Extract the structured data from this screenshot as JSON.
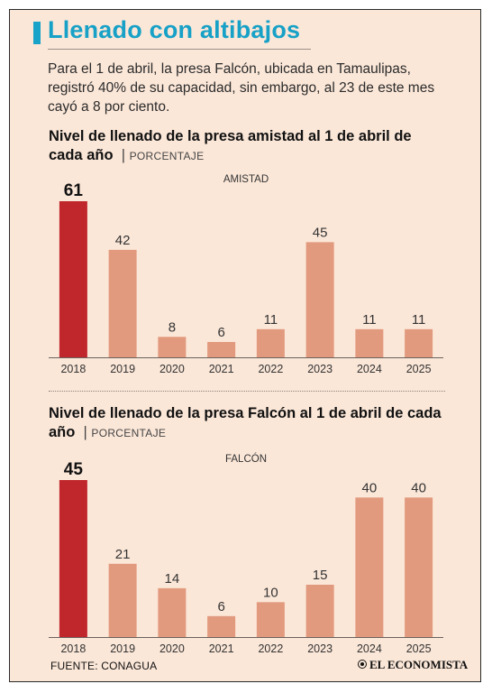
{
  "headline": "Llenado con altibajos",
  "intro": "Para el 1 de abril, la presa Falcón, ubicada en Tamaulipas, registró 40% de su capacidad, sin embargo, al 23 de este mes cayó a 8 por ciento.",
  "footer": {
    "source": "FUENTE: CONAGUA",
    "logo": "EL ECONOMISTA"
  },
  "colors": {
    "accent": "#1aa3c9",
    "highlight_bar": "#c0272d",
    "bar": "#e29a7e",
    "background": "#fbe7d8"
  },
  "chart_data": [
    {
      "type": "bar",
      "title": "Nivel de llenado de la presa amistad al 1 de abril de cada año",
      "unit": "PORCENTAJE",
      "label": "AMISTAD",
      "categories": [
        "2018",
        "2019",
        "2020",
        "2021",
        "2022",
        "2023",
        "2024",
        "2025"
      ],
      "values": [
        61,
        42,
        8,
        6,
        11,
        45,
        11,
        11
      ],
      "highlight_index": 0,
      "ylim": [
        0,
        61
      ],
      "grid": false
    },
    {
      "type": "bar",
      "title": "Nivel de llenado de la presa Falcón al 1 de abril de cada año",
      "unit": "PORCENTAJE",
      "label": "FALCÓN",
      "categories": [
        "2018",
        "2019",
        "2020",
        "2021",
        "2022",
        "2023",
        "2024",
        "2025"
      ],
      "values": [
        45,
        21,
        14,
        6,
        10,
        15,
        40,
        40
      ],
      "highlight_index": 0,
      "ylim": [
        0,
        45
      ],
      "grid": false
    }
  ]
}
